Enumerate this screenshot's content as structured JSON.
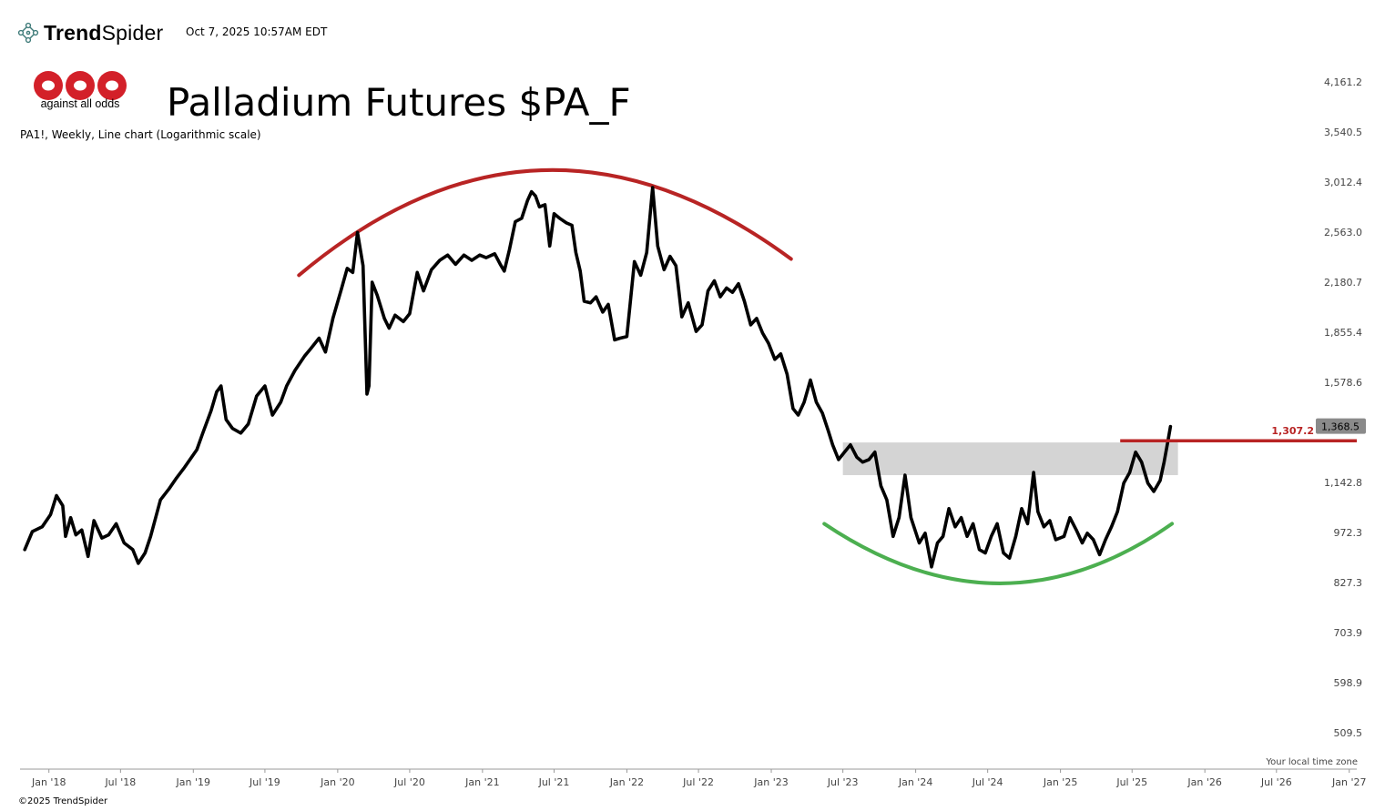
{
  "header": {
    "brand_bold": "Trend",
    "brand_light": "Spider",
    "timestamp": "Oct 7, 2025 10:57AM EDT",
    "logo_text": "against all odds"
  },
  "footer": {
    "copyright": "©2025 TrendSpider",
    "timezone_label": "Your local time zone"
  },
  "colors": {
    "price_line": "#000000",
    "top_arc": "#b82424",
    "bottom_arc": "#4caf50",
    "resistance": "#b82424",
    "zone": "#cccccc",
    "logo": "#d32029"
  },
  "chart_data": {
    "type": "line",
    "title": "Palladium Futures $PA_F",
    "subtitle": "PA1!, Weekly, Line chart (Logarithmic scale)",
    "y_scale": "log",
    "x_ticks": [
      "Jan '18",
      "Jul '18",
      "Jan '19",
      "Jul '19",
      "Jan '20",
      "Jul '20",
      "Jan '21",
      "Jul '21",
      "Jan '22",
      "Jul '22",
      "Jan '23",
      "Jul '23",
      "Jan '24",
      "Jul '24",
      "Jan '25",
      "Jul '25",
      "Jan '26",
      "Jul '26",
      "Jan '27"
    ],
    "y_ticks": [
      "4,161.2",
      "3,540.5",
      "3,012.4",
      "2,563.0",
      "2,180.7",
      "1,855.4",
      "1,578.6",
      "1,142.8",
      "972.3",
      "827.3",
      "703.9",
      "598.9",
      "509.5"
    ],
    "y_tick_values": [
      4161.2,
      3540.5,
      3012.4,
      2563.0,
      2180.7,
      1855.4,
      1578.6,
      1142.8,
      972.3,
      827.3,
      703.9,
      598.9,
      509.5
    ],
    "ylim": [
      470,
      4500
    ],
    "xlim": [
      "2017-10-20",
      "2027-01-20"
    ],
    "series": [
      {
        "values": [
          [
            "2017-11-01",
            920
          ],
          [
            "2017-11-20",
            975
          ],
          [
            "2017-12-15",
            990
          ],
          [
            "2018-01-05",
            1030
          ],
          [
            "2018-01-20",
            1095
          ],
          [
            "2018-02-05",
            1060
          ],
          [
            "2018-02-12",
            960
          ],
          [
            "2018-02-25",
            1020
          ],
          [
            "2018-03-10",
            965
          ],
          [
            "2018-03-25",
            980
          ],
          [
            "2018-04-10",
            900
          ],
          [
            "2018-04-25",
            1010
          ],
          [
            "2018-05-15",
            955
          ],
          [
            "2018-06-01",
            965
          ],
          [
            "2018-06-20",
            1000
          ],
          [
            "2018-07-10",
            940
          ],
          [
            "2018-08-01",
            920
          ],
          [
            "2018-08-15",
            880
          ],
          [
            "2018-09-01",
            910
          ],
          [
            "2018-09-15",
            960
          ],
          [
            "2018-10-10",
            1080
          ],
          [
            "2018-11-01",
            1120
          ],
          [
            "2018-11-20",
            1160
          ],
          [
            "2018-12-10",
            1200
          ],
          [
            "2019-01-10",
            1270
          ],
          [
            "2019-01-25",
            1340
          ],
          [
            "2019-02-15",
            1440
          ],
          [
            "2019-03-01",
            1530
          ],
          [
            "2019-03-12",
            1560
          ],
          [
            "2019-03-25",
            1400
          ],
          [
            "2019-04-10",
            1360
          ],
          [
            "2019-05-01",
            1340
          ],
          [
            "2019-05-20",
            1380
          ],
          [
            "2019-06-10",
            1510
          ],
          [
            "2019-07-01",
            1560
          ],
          [
            "2019-07-20",
            1420
          ],
          [
            "2019-08-10",
            1480
          ],
          [
            "2019-08-25",
            1560
          ],
          [
            "2019-09-15",
            1640
          ],
          [
            "2019-10-10",
            1720
          ],
          [
            "2019-10-25",
            1760
          ],
          [
            "2019-11-15",
            1820
          ],
          [
            "2019-12-01",
            1740
          ],
          [
            "2019-12-20",
            1940
          ],
          [
            "2020-01-10",
            2130
          ],
          [
            "2020-01-25",
            2280
          ],
          [
            "2020-02-08",
            2250
          ],
          [
            "2020-02-20",
            2560
          ],
          [
            "2020-03-05",
            2300
          ],
          [
            "2020-03-15",
            1520
          ],
          [
            "2020-03-20",
            1560
          ],
          [
            "2020-03-28",
            2180
          ],
          [
            "2020-04-10",
            2090
          ],
          [
            "2020-04-28",
            1940
          ],
          [
            "2020-05-10",
            1880
          ],
          [
            "2020-05-25",
            1960
          ],
          [
            "2020-06-15",
            1920
          ],
          [
            "2020-07-01",
            1970
          ],
          [
            "2020-07-20",
            2250
          ],
          [
            "2020-08-05",
            2120
          ],
          [
            "2020-08-25",
            2270
          ],
          [
            "2020-09-15",
            2340
          ],
          [
            "2020-10-05",
            2380
          ],
          [
            "2020-10-25",
            2310
          ],
          [
            "2020-11-15",
            2380
          ],
          [
            "2020-12-05",
            2340
          ],
          [
            "2020-12-25",
            2380
          ],
          [
            "2021-01-10",
            2360
          ],
          [
            "2021-02-01",
            2390
          ],
          [
            "2021-02-15",
            2310
          ],
          [
            "2021-02-25",
            2260
          ],
          [
            "2021-03-10",
            2420
          ],
          [
            "2021-03-25",
            2650
          ],
          [
            "2021-04-10",
            2680
          ],
          [
            "2021-04-25",
            2840
          ],
          [
            "2021-05-05",
            2920
          ],
          [
            "2021-05-15",
            2880
          ],
          [
            "2021-05-25",
            2780
          ],
          [
            "2021-06-08",
            2800
          ],
          [
            "2021-06-20",
            2450
          ],
          [
            "2021-07-01",
            2720
          ],
          [
            "2021-07-15",
            2680
          ],
          [
            "2021-08-01",
            2640
          ],
          [
            "2021-08-15",
            2620
          ],
          [
            "2021-08-25",
            2400
          ],
          [
            "2021-09-05",
            2260
          ],
          [
            "2021-09-15",
            2050
          ],
          [
            "2021-10-01",
            2040
          ],
          [
            "2021-10-15",
            2080
          ],
          [
            "2021-11-01",
            1980
          ],
          [
            "2021-11-15",
            2030
          ],
          [
            "2021-12-01",
            1810
          ],
          [
            "2021-12-15",
            1820
          ],
          [
            "2022-01-01",
            1830
          ],
          [
            "2022-01-20",
            2330
          ],
          [
            "2022-02-05",
            2230
          ],
          [
            "2022-02-20",
            2400
          ],
          [
            "2022-03-07",
            2960
          ],
          [
            "2022-03-20",
            2450
          ],
          [
            "2022-04-05",
            2270
          ],
          [
            "2022-04-20",
            2370
          ],
          [
            "2022-05-05",
            2300
          ],
          [
            "2022-05-20",
            1950
          ],
          [
            "2022-06-05",
            2040
          ],
          [
            "2022-06-25",
            1860
          ],
          [
            "2022-07-10",
            1900
          ],
          [
            "2022-07-25",
            2120
          ],
          [
            "2022-08-10",
            2190
          ],
          [
            "2022-08-25",
            2080
          ],
          [
            "2022-09-10",
            2140
          ],
          [
            "2022-09-25",
            2110
          ],
          [
            "2022-10-10",
            2170
          ],
          [
            "2022-10-25",
            2050
          ],
          [
            "2022-11-10",
            1900
          ],
          [
            "2022-11-25",
            1940
          ],
          [
            "2022-12-10",
            1850
          ],
          [
            "2022-12-25",
            1790
          ],
          [
            "2023-01-10",
            1700
          ],
          [
            "2023-01-25",
            1730
          ],
          [
            "2023-02-10",
            1620
          ],
          [
            "2023-02-25",
            1450
          ],
          [
            "2023-03-10",
            1420
          ],
          [
            "2023-03-25",
            1480
          ],
          [
            "2023-04-10",
            1590
          ],
          [
            "2023-04-25",
            1480
          ],
          [
            "2023-05-10",
            1430
          ],
          [
            "2023-05-25",
            1350
          ],
          [
            "2023-06-05",
            1290
          ],
          [
            "2023-06-20",
            1230
          ],
          [
            "2023-07-05",
            1260
          ],
          [
            "2023-07-20",
            1290
          ],
          [
            "2023-08-05",
            1240
          ],
          [
            "2023-08-20",
            1220
          ],
          [
            "2023-09-05",
            1230
          ],
          [
            "2023-09-20",
            1260
          ],
          [
            "2023-10-05",
            1130
          ],
          [
            "2023-10-20",
            1080
          ],
          [
            "2023-11-05",
            960
          ],
          [
            "2023-11-20",
            1020
          ],
          [
            "2023-12-05",
            1170
          ],
          [
            "2023-12-20",
            1020
          ],
          [
            "2024-01-10",
            940
          ],
          [
            "2024-01-25",
            970
          ],
          [
            "2024-02-10",
            870
          ],
          [
            "2024-02-25",
            940
          ],
          [
            "2024-03-10",
            960
          ],
          [
            "2024-03-25",
            1050
          ],
          [
            "2024-04-10",
            990
          ],
          [
            "2024-04-25",
            1020
          ],
          [
            "2024-05-10",
            960
          ],
          [
            "2024-05-25",
            1000
          ],
          [
            "2024-06-10",
            920
          ],
          [
            "2024-06-25",
            910
          ],
          [
            "2024-07-10",
            960
          ],
          [
            "2024-07-25",
            1000
          ],
          [
            "2024-08-10",
            910
          ],
          [
            "2024-08-25",
            895
          ],
          [
            "2024-09-10",
            960
          ],
          [
            "2024-09-25",
            1050
          ],
          [
            "2024-10-10",
            1000
          ],
          [
            "2024-10-25",
            1180
          ],
          [
            "2024-11-05",
            1040
          ],
          [
            "2024-11-20",
            990
          ],
          [
            "2024-12-05",
            1010
          ],
          [
            "2024-12-20",
            950
          ],
          [
            "2025-01-10",
            960
          ],
          [
            "2025-01-25",
            1020
          ],
          [
            "2025-02-10",
            980
          ],
          [
            "2025-02-25",
            940
          ],
          [
            "2025-03-10",
            970
          ],
          [
            "2025-03-25",
            950
          ],
          [
            "2025-04-10",
            905
          ],
          [
            "2025-04-25",
            950
          ],
          [
            "2025-05-10",
            990
          ],
          [
            "2025-05-25",
            1040
          ],
          [
            "2025-06-10",
            1140
          ],
          [
            "2025-06-25",
            1180
          ],
          [
            "2025-07-10",
            1260
          ],
          [
            "2025-07-25",
            1220
          ],
          [
            "2025-08-10",
            1140
          ],
          [
            "2025-08-25",
            1110
          ],
          [
            "2025-09-10",
            1150
          ],
          [
            "2025-09-20",
            1220
          ],
          [
            "2025-09-30",
            1310
          ],
          [
            "2025-10-06",
            1368.5
          ]
        ]
      }
    ],
    "annotations": {
      "resistance_level": 1307.2,
      "resistance_label": "1,307.2",
      "last_price_label": "1,368.5",
      "zone_range": [
        1170,
        1300
      ],
      "zone_from": "2023-07-01",
      "zone_to": "2025-10-25",
      "top_arc": [
        [
          "2019-09-25",
          2230
        ],
        [
          "2021-06-01",
          3130
        ],
        [
          "2023-02-20",
          2350
        ]
      ],
      "bottom_arc": [
        [
          "2023-05-15",
          1000
        ],
        [
          "2024-08-01",
          825
        ],
        [
          "2025-10-10",
          1000
        ]
      ]
    }
  }
}
